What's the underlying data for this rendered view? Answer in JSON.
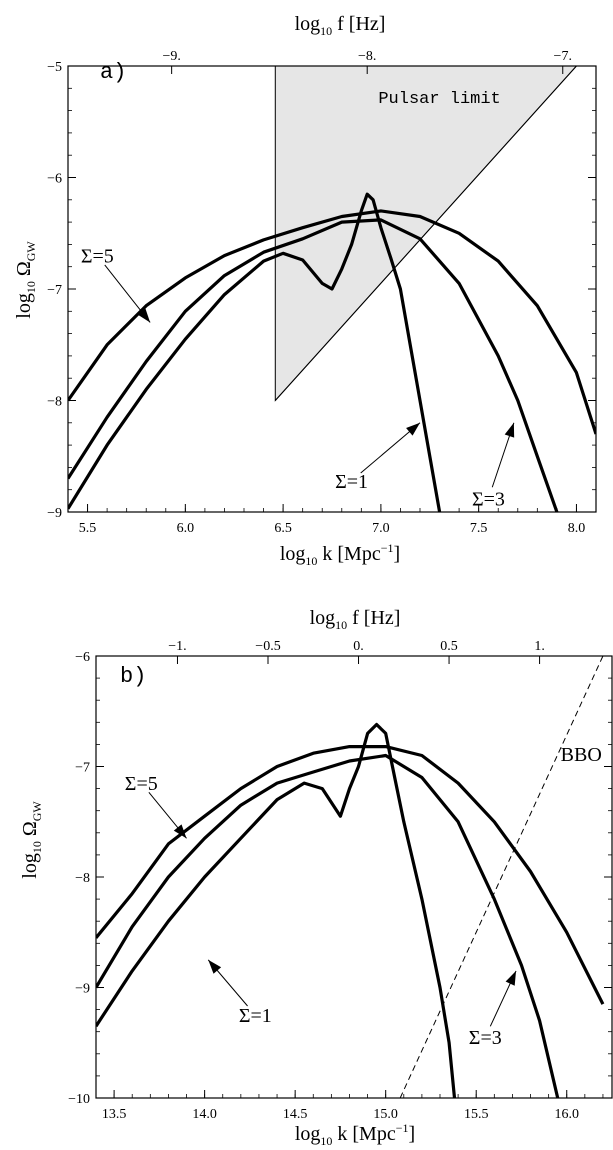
{
  "chart_data": [
    {
      "type": "line",
      "panel_label": "a)",
      "xlabel_main": "log",
      "xlabel_sub": "10",
      "xlabel_rest": " k [Mpc",
      "xlabel_sup": "−1",
      "xlabel_close": "]",
      "top_label_main": "log",
      "top_label_sub": "10",
      "top_label_rest": " f [Hz]",
      "ylabel_main": "log",
      "ylabel_sub": "10",
      "ylabel_omega": " Ω",
      "ylabel_omega_sub": "GW",
      "xlim": [
        5.4,
        8.1
      ],
      "ylim": [
        -9,
        -5
      ],
      "x_ticks": [
        5.5,
        6.0,
        6.5,
        7.0,
        7.5,
        8.0
      ],
      "x_tick_labels": [
        "5.5",
        "6.0",
        "6.5",
        "7.0",
        "7.5",
        "8.0"
      ],
      "y_ticks": [
        -9,
        -8,
        -7,
        -6,
        -5
      ],
      "y_tick_labels": [
        "−9",
        "−8",
        "−7",
        "−6",
        "−5"
      ],
      "top_ticks": [
        5.93,
        6.93,
        7.93
      ],
      "top_tick_labels": [
        "−9.",
        "−8.",
        "−7."
      ],
      "shaded_region": {
        "label": "Pulsar limit",
        "points": [
          [
            6.46,
            -8.0
          ],
          [
            6.46,
            -5.0
          ],
          [
            8.0,
            -5.0
          ]
        ]
      },
      "series": [
        {
          "values": [
            [
              5.4,
              -8.97
            ],
            [
              5.6,
              -8.4
            ],
            [
              5.8,
              -7.9
            ],
            [
              6.0,
              -7.45
            ],
            [
              6.2,
              -7.05
            ],
            [
              6.4,
              -6.75
            ],
            [
              6.5,
              -6.68
            ],
            [
              6.6,
              -6.74
            ],
            [
              6.7,
              -6.95
            ],
            [
              6.75,
              -7.0
            ],
            [
              6.8,
              -6.82
            ],
            [
              6.85,
              -6.6
            ],
            [
              6.9,
              -6.3
            ],
            [
              6.93,
              -6.15
            ],
            [
              6.96,
              -6.2
            ],
            [
              7.0,
              -6.45
            ],
            [
              7.05,
              -6.72
            ],
            [
              7.1,
              -7.0
            ],
            [
              7.15,
              -7.5
            ],
            [
              7.2,
              -8.0
            ],
            [
              7.25,
              -8.5
            ],
            [
              7.3,
              -9.0
            ]
          ]
        },
        {
          "values": [
            [
              5.4,
              -8.7
            ],
            [
              5.6,
              -8.15
            ],
            [
              5.8,
              -7.65
            ],
            [
              6.0,
              -7.2
            ],
            [
              6.2,
              -6.88
            ],
            [
              6.4,
              -6.67
            ],
            [
              6.6,
              -6.55
            ],
            [
              6.8,
              -6.4
            ],
            [
              7.0,
              -6.38
            ],
            [
              7.2,
              -6.55
            ],
            [
              7.4,
              -6.95
            ],
            [
              7.6,
              -7.6
            ],
            [
              7.7,
              -8.0
            ],
            [
              7.8,
              -8.5
            ],
            [
              7.9,
              -9.0
            ]
          ]
        },
        {
          "values": [
            [
              5.4,
              -8.0
            ],
            [
              5.6,
              -7.5
            ],
            [
              5.8,
              -7.15
            ],
            [
              6.0,
              -6.9
            ],
            [
              6.2,
              -6.7
            ],
            [
              6.4,
              -6.56
            ],
            [
              6.6,
              -6.45
            ],
            [
              6.8,
              -6.35
            ],
            [
              7.0,
              -6.3
            ],
            [
              7.2,
              -6.35
            ],
            [
              7.4,
              -6.5
            ],
            [
              7.6,
              -6.75
            ],
            [
              7.8,
              -7.15
            ],
            [
              8.0,
              -7.75
            ],
            [
              8.1,
              -8.3
            ]
          ]
        }
      ],
      "line_y": {
        "points": [
          [
            6.46,
            -8.0
          ],
          [
            8.0,
            -5.0
          ]
        ]
      },
      "annotations": [
        {
          "label": "Σ=5",
          "text_at": [
            5.55,
            -6.7
          ],
          "arrow_to": [
            5.82,
            -7.3
          ]
        },
        {
          "label": "Σ=1",
          "text_at": [
            6.85,
            -8.72
          ],
          "arrow_to": [
            7.2,
            -8.2
          ]
        },
        {
          "label": "Σ=3",
          "text_at": [
            7.55,
            -8.88
          ],
          "arrow_to": [
            7.68,
            -8.2
          ]
        }
      ]
    },
    {
      "type": "line",
      "panel_label": "b)",
      "xlabel_main": "log",
      "xlabel_sub": "10",
      "xlabel_rest": " k [Mpc",
      "xlabel_sup": "−1",
      "xlabel_close": "]",
      "top_label_main": "log",
      "top_label_sub": "10",
      "top_label_rest": " f [Hz]",
      "ylabel_main": "log",
      "ylabel_sub": "10",
      "ylabel_omega": " Ω",
      "ylabel_omega_sub": "GW",
      "xlim": [
        13.4,
        16.25
      ],
      "ylim": [
        -10,
        -6
      ],
      "x_ticks": [
        13.5,
        14.0,
        14.5,
        15.0,
        15.5,
        16.0
      ],
      "x_tick_labels": [
        "13.5",
        "14.0",
        "14.5",
        "15.0",
        "15.5",
        "16.0"
      ],
      "y_ticks": [
        -10,
        -9,
        -8,
        -7,
        -6
      ],
      "y_tick_labels": [
        "−10",
        "−9",
        "−8",
        "−7",
        "−6"
      ],
      "top_ticks": [
        13.85,
        14.35,
        14.85,
        15.35,
        15.85
      ],
      "top_tick_labels": [
        "−1.",
        "−0.5",
        "0.",
        "0.5",
        "1."
      ],
      "bbo_label": "BBO",
      "bbo_line": {
        "points": [
          [
            15.08,
            -10.0
          ],
          [
            16.2,
            -6.0
          ]
        ]
      },
      "series": [
        {
          "values": [
            [
              13.4,
              -9.35
            ],
            [
              13.6,
              -8.85
            ],
            [
              13.8,
              -8.4
            ],
            [
              14.0,
              -8.0
            ],
            [
              14.2,
              -7.65
            ],
            [
              14.4,
              -7.3
            ],
            [
              14.55,
              -7.15
            ],
            [
              14.65,
              -7.2
            ],
            [
              14.75,
              -7.45
            ],
            [
              14.8,
              -7.2
            ],
            [
              14.85,
              -7.0
            ],
            [
              14.9,
              -6.7
            ],
            [
              14.95,
              -6.62
            ],
            [
              15.0,
              -6.7
            ],
            [
              15.05,
              -7.1
            ],
            [
              15.1,
              -7.5
            ],
            [
              15.2,
              -8.2
            ],
            [
              15.3,
              -9.0
            ],
            [
              15.35,
              -9.5
            ],
            [
              15.38,
              -10.0
            ]
          ]
        },
        {
          "values": [
            [
              13.4,
              -9.0
            ],
            [
              13.6,
              -8.45
            ],
            [
              13.8,
              -8.0
            ],
            [
              14.0,
              -7.65
            ],
            [
              14.2,
              -7.35
            ],
            [
              14.4,
              -7.15
            ],
            [
              14.6,
              -7.05
            ],
            [
              14.8,
              -6.95
            ],
            [
              15.0,
              -6.9
            ],
            [
              15.2,
              -7.1
            ],
            [
              15.4,
              -7.5
            ],
            [
              15.6,
              -8.2
            ],
            [
              15.75,
              -8.8
            ],
            [
              15.85,
              -9.3
            ],
            [
              15.95,
              -10.0
            ]
          ]
        },
        {
          "values": [
            [
              13.4,
              -8.55
            ],
            [
              13.6,
              -8.15
            ],
            [
              13.8,
              -7.7
            ],
            [
              14.0,
              -7.45
            ],
            [
              14.2,
              -7.2
            ],
            [
              14.4,
              -7.0
            ],
            [
              14.6,
              -6.88
            ],
            [
              14.8,
              -6.82
            ],
            [
              15.0,
              -6.82
            ],
            [
              15.2,
              -6.9
            ],
            [
              15.4,
              -7.15
            ],
            [
              15.6,
              -7.5
            ],
            [
              15.8,
              -7.95
            ],
            [
              16.0,
              -8.5
            ],
            [
              16.2,
              -9.15
            ]
          ]
        }
      ],
      "annotations": [
        {
          "label": "Σ=5",
          "text_at": [
            13.65,
            -7.15
          ],
          "arrow_to": [
            13.9,
            -7.65
          ]
        },
        {
          "label": "Σ=1",
          "text_at": [
            14.28,
            -9.25
          ],
          "arrow_to": [
            14.02,
            -8.75
          ]
        },
        {
          "label": "Σ=3",
          "text_at": [
            15.55,
            -9.45
          ],
          "arrow_to": [
            15.72,
            -8.85
          ]
        }
      ]
    }
  ]
}
